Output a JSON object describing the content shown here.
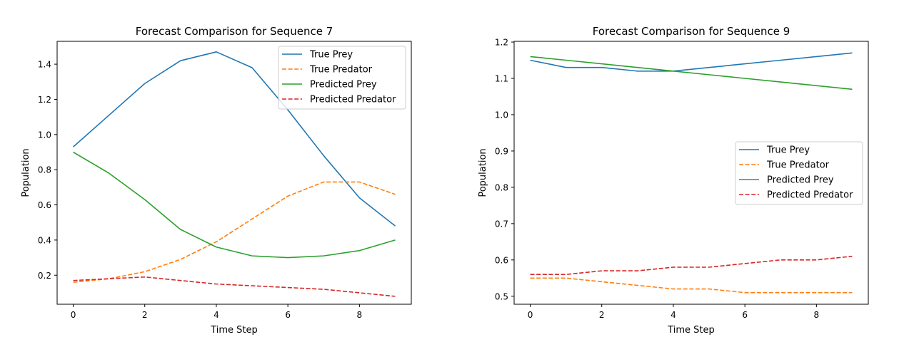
{
  "colors": {
    "true_prey": "#1f77b4",
    "true_predator": "#ff7f0e",
    "predicted_prey": "#2ca02c",
    "predicted_predator": "#d62728"
  },
  "chart_data": [
    {
      "type": "line",
      "title": "Forecast Comparison for Sequence 7",
      "xlabel": "Time Step",
      "ylabel": "Population",
      "xlim": [
        -0.45,
        9.45
      ],
      "ylim": [
        0.035,
        1.53
      ],
      "xticks": [
        0,
        2,
        4,
        6,
        8
      ],
      "yticks": [
        0.2,
        0.4,
        0.6,
        0.8,
        1.0,
        1.2,
        1.4
      ],
      "ytick_labels": [
        "0.2",
        "0.4",
        "0.6",
        "0.8",
        "1.0",
        "1.2",
        "1.4"
      ],
      "legend_position": "upper right",
      "x": [
        0,
        1,
        2,
        3,
        4,
        5,
        6,
        7,
        8,
        9
      ],
      "series": [
        {
          "name": "True Prey",
          "style": "solid",
          "color_key": "true_prey",
          "values": [
            0.93,
            1.11,
            1.29,
            1.42,
            1.47,
            1.38,
            1.14,
            0.88,
            0.64,
            0.48
          ]
        },
        {
          "name": "True Predator",
          "style": "dashed",
          "color_key": "true_predator",
          "values": [
            0.16,
            0.18,
            0.22,
            0.29,
            0.39,
            0.52,
            0.65,
            0.73,
            0.73,
            0.66
          ]
        },
        {
          "name": "Predicted Prey",
          "style": "solid",
          "color_key": "predicted_prey",
          "values": [
            0.9,
            0.78,
            0.63,
            0.46,
            0.36,
            0.31,
            0.3,
            0.31,
            0.34,
            0.4
          ]
        },
        {
          "name": "Predicted Predator",
          "style": "dashed",
          "color_key": "predicted_predator",
          "values": [
            0.17,
            0.18,
            0.19,
            0.17,
            0.15,
            0.14,
            0.13,
            0.12,
            0.1,
            0.08
          ]
        }
      ]
    },
    {
      "type": "line",
      "title": "Forecast Comparison for Sequence 9",
      "xlabel": "Time Step",
      "ylabel": "Population",
      "xlim": [
        -0.45,
        9.45
      ],
      "ylim": [
        0.478,
        1.202
      ],
      "xticks": [
        0,
        2,
        4,
        6,
        8
      ],
      "yticks": [
        0.5,
        0.6,
        0.7,
        0.8,
        0.9,
        1.0,
        1.1,
        1.2
      ],
      "ytick_labels": [
        "0.5",
        "0.6",
        "0.7",
        "0.8",
        "0.9",
        "1.0",
        "1.1",
        "1.2"
      ],
      "legend_position": "center right",
      "x": [
        0,
        1,
        2,
        3,
        4,
        5,
        6,
        7,
        8,
        9
      ],
      "series": [
        {
          "name": "True Prey",
          "style": "solid",
          "color_key": "true_prey",
          "values": [
            1.15,
            1.13,
            1.13,
            1.12,
            1.12,
            1.13,
            1.14,
            1.15,
            1.16,
            1.17
          ]
        },
        {
          "name": "True Predator",
          "style": "dashed",
          "color_key": "true_predator",
          "values": [
            0.55,
            0.55,
            0.54,
            0.53,
            0.52,
            0.52,
            0.51,
            0.51,
            0.51,
            0.51
          ]
        },
        {
          "name": "Predicted Prey",
          "style": "solid",
          "color_key": "predicted_prey",
          "values": [
            1.16,
            1.15,
            1.14,
            1.13,
            1.12,
            1.11,
            1.1,
            1.09,
            1.08,
            1.07
          ]
        },
        {
          "name": "Predicted Predator",
          "style": "dashed",
          "color_key": "predicted_predator",
          "values": [
            0.56,
            0.56,
            0.57,
            0.57,
            0.58,
            0.58,
            0.59,
            0.6,
            0.6,
            0.61
          ]
        }
      ]
    }
  ]
}
